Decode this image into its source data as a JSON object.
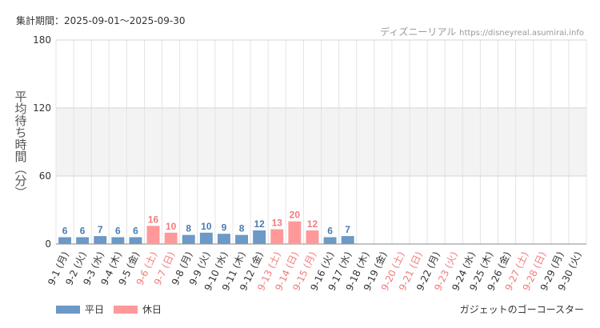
{
  "header": {
    "period": "集計期間：2025-09-01〜2025-09-30",
    "source_name": "ディズニーリアル",
    "source_url": "https://disneyreal.asumirai.info"
  },
  "footer": {
    "attraction": "ガジェットのゴーコースター"
  },
  "colors": {
    "weekday": "#6c99c6",
    "holiday": "#ff9999",
    "weekday_label": "#4a7cb0",
    "holiday_label": "#f07c7c",
    "band": "#f3f3f3",
    "grid": "#e4e4e4"
  },
  "chart_data": {
    "type": "bar",
    "ylabel": "平均待ち時間（分）",
    "ylim": [
      0,
      180
    ],
    "yticks": [
      0,
      60,
      120,
      180
    ],
    "grid": true,
    "legend_position": "bottom-left",
    "legend": [
      {
        "name": "平日",
        "color": "#6c99c6"
      },
      {
        "name": "休日",
        "color": "#ff9999"
      }
    ],
    "categories": [
      "9-1 (月)",
      "9-2 (火)",
      "9-3 (水)",
      "9-4 (木)",
      "9-5 (金)",
      "9-6 (土)",
      "9-7 (日)",
      "9-8 (月)",
      "9-9 (火)",
      "9-10 (水)",
      "9-11 (木)",
      "9-12 (金)",
      "9-13 (土)",
      "9-14 (日)",
      "9-15 (月)",
      "9-16 (火)",
      "9-17 (水)",
      "9-18 (木)",
      "9-19 (金)",
      "9-20 (土)",
      "9-21 (日)",
      "9-22 (月)",
      "9-23 (火)",
      "9-24 (水)",
      "9-25 (木)",
      "9-26 (金)",
      "9-27 (土)",
      "9-28 (日)",
      "9-29 (月)",
      "9-30 (火)"
    ],
    "holiday": [
      false,
      false,
      false,
      false,
      false,
      true,
      true,
      false,
      false,
      false,
      false,
      false,
      true,
      true,
      true,
      false,
      false,
      false,
      false,
      true,
      true,
      false,
      true,
      false,
      false,
      false,
      true,
      true,
      false,
      false
    ],
    "values": [
      6,
      6,
      7,
      6,
      6,
      16,
      10,
      8,
      10,
      9,
      8,
      12,
      13,
      20,
      12,
      6,
      7,
      null,
      null,
      null,
      null,
      null,
      null,
      null,
      null,
      null,
      null,
      null,
      null,
      null
    ]
  }
}
